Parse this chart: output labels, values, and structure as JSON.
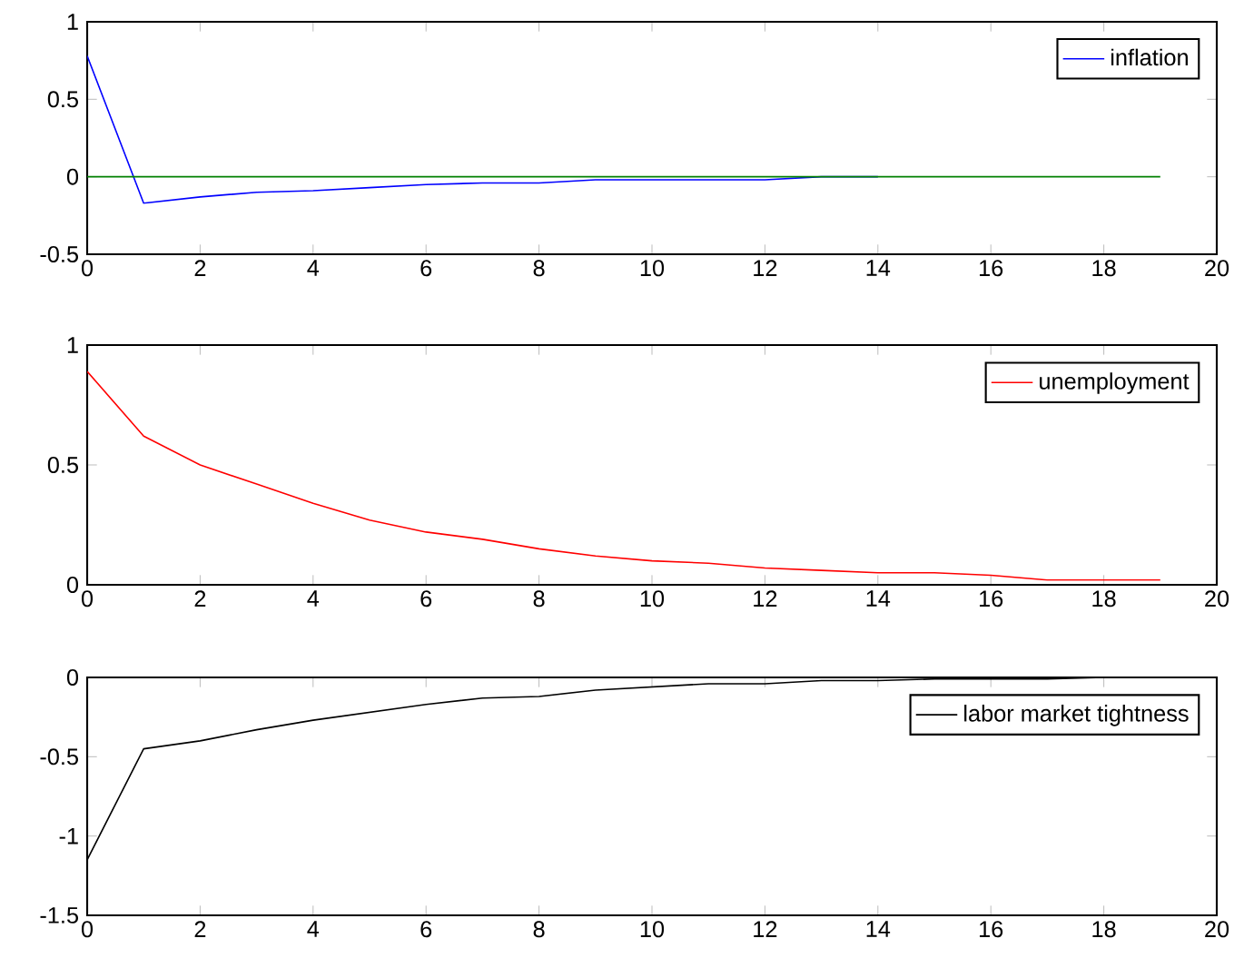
{
  "chart_data": [
    {
      "type": "line",
      "x": [
        0,
        1,
        2,
        3,
        4,
        5,
        6,
        7,
        8,
        9,
        10,
        11,
        12,
        13,
        14,
        15,
        16,
        17,
        18,
        19
      ],
      "xlim": [
        0,
        20
      ],
      "xticks": [
        0,
        2,
        4,
        6,
        8,
        10,
        12,
        14,
        16,
        18,
        20
      ],
      "ylim": [
        -0.5,
        1
      ],
      "yticks": [
        -0.5,
        0,
        0.5,
        1
      ],
      "legend": "top right",
      "grid": false,
      "series": [
        {
          "name": "inflation",
          "color": "#0000ff",
          "values": [
            0.78,
            -0.17,
            -0.13,
            -0.1,
            -0.09,
            -0.07,
            -0.05,
            -0.04,
            -0.04,
            -0.02,
            -0.02,
            -0.02,
            -0.02,
            0,
            0,
            null,
            null,
            null,
            null,
            null
          ]
        },
        {
          "color": "#008000",
          "values": [
            0,
            0,
            0,
            0,
            0,
            0,
            0,
            0,
            0,
            0,
            0,
            0,
            0,
            0,
            0,
            0,
            0,
            0,
            0,
            0
          ]
        }
      ]
    },
    {
      "type": "line",
      "x": [
        0,
        1,
        2,
        3,
        4,
        5,
        6,
        7,
        8,
        9,
        10,
        11,
        12,
        13,
        14,
        15,
        16,
        17,
        18,
        19
      ],
      "xlim": [
        0,
        20
      ],
      "xticks": [
        0,
        2,
        4,
        6,
        8,
        10,
        12,
        14,
        16,
        18,
        20
      ],
      "ylim": [
        0,
        1
      ],
      "yticks": [
        0,
        0.5,
        1
      ],
      "legend": "top right",
      "grid": false,
      "series": [
        {
          "name": "unemployment",
          "color": "#ff0000",
          "values": [
            0.89,
            0.62,
            0.5,
            0.42,
            0.34,
            0.27,
            0.22,
            0.19,
            0.15,
            0.12,
            0.1,
            0.09,
            0.07,
            0.06,
            0.05,
            0.05,
            0.04,
            0.02,
            0.02,
            0.02
          ]
        }
      ]
    },
    {
      "type": "line",
      "x": [
        0,
        1,
        2,
        3,
        4,
        5,
        6,
        7,
        8,
        9,
        10,
        11,
        12,
        13,
        14,
        15,
        16,
        17,
        18,
        19
      ],
      "xlim": [
        0,
        20
      ],
      "xticks": [
        0,
        2,
        4,
        6,
        8,
        10,
        12,
        14,
        16,
        18,
        20
      ],
      "ylim": [
        -1.5,
        0
      ],
      "yticks": [
        -1.5,
        -1,
        -0.5,
        0
      ],
      "legend": "top right",
      "grid": false,
      "series": [
        {
          "name": "labor market tightness",
          "color": "#000000",
          "values": [
            -1.15,
            -0.45,
            -0.4,
            -0.33,
            -0.27,
            -0.22,
            -0.17,
            -0.13,
            -0.12,
            -0.08,
            -0.06,
            -0.04,
            -0.04,
            -0.02,
            -0.02,
            -0.01,
            -0.01,
            -0.01,
            0,
            0
          ]
        }
      ]
    }
  ]
}
